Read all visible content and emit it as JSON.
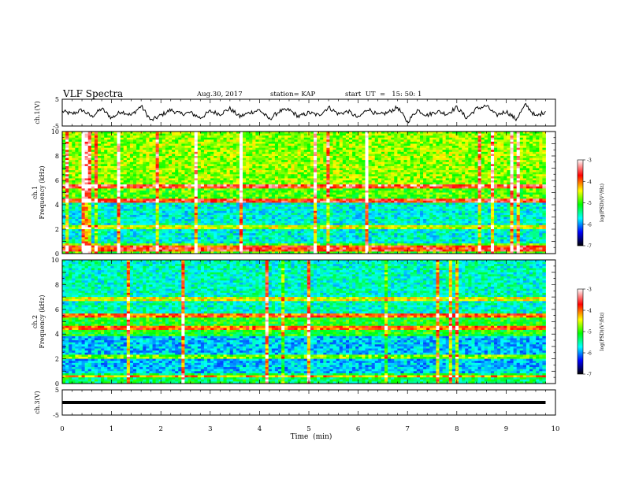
{
  "header": {
    "title": "VLF Spectra",
    "date": "Aug.30, 2017",
    "station": "station= KAP",
    "start": "start  UT  =   15: 50: 1"
  },
  "colorbar": {
    "label": "log(PSD)(V²/Hz)",
    "ticks": [
      "-3",
      "-4",
      "-5",
      "-6",
      "-7"
    ],
    "colors": [
      "#ffffff",
      "#ff0000",
      "#ffff00",
      "#00ff00",
      "#00ffff",
      "#0000ff",
      "#000000"
    ]
  },
  "chart_data": [
    {
      "id": "ch1-waveform",
      "type": "line",
      "ylabel": "ch.1(V)",
      "ylim": [
        -5,
        5
      ],
      "y_ticklabels": [
        "5",
        "-5"
      ],
      "xlim": [
        0,
        10
      ],
      "x": [
        0,
        0.2,
        0.4,
        0.6,
        0.8,
        1.0,
        1.2,
        1.4,
        1.6,
        1.8,
        2.0,
        2.2,
        2.4,
        2.6,
        2.8,
        3.0,
        3.2,
        3.4,
        3.6,
        3.8,
        4.0,
        4.2,
        4.4,
        4.6,
        4.8,
        5.0,
        5.2,
        5.4,
        5.6,
        5.8,
        6.0,
        6.2,
        6.4,
        6.6,
        6.8,
        7.0,
        7.2,
        7.4,
        7.6,
        7.8,
        8.0,
        8.2,
        8.4,
        8.6,
        8.8,
        9.0,
        9.2,
        9.4,
        9.6,
        9.8
      ],
      "y": [
        0.5,
        -0.5,
        1.0,
        -1.5,
        1.5,
        -2.0,
        0.5,
        -1.0,
        2.5,
        -3.0,
        -1.0,
        1.0,
        -0.5,
        0.0,
        -2.0,
        0.5,
        -0.5,
        1.5,
        -1.5,
        0.0,
        1.0,
        -2.5,
        0.5,
        1.0,
        -1.5,
        0.0,
        -1.0,
        2.0,
        -0.5,
        0.5,
        -2.0,
        1.5,
        -1.0,
        0.0,
        2.0,
        -3.5,
        1.0,
        -1.0,
        0.5,
        -0.5,
        2.0,
        -2.0,
        1.5,
        2.5,
        -1.0,
        0.5,
        -2.5,
        3.0,
        -1.5,
        0.5
      ]
    },
    {
      "id": "ch1-spectrogram",
      "type": "heatmap",
      "ylabel": "ch.1\nFrequency (kHz)",
      "ylim": [
        0,
        10
      ],
      "y_ticklabels": [
        "0",
        "2",
        "4",
        "6",
        "8",
        "10"
      ],
      "xlim": [
        0,
        9.8
      ],
      "value_range": [
        -7,
        -3
      ],
      "description_of_structure": "broadband green/yellow noise with blue low-power bands around 1-4 kHz, red narrowband lines near 0.3, 2.2, 4.3, 5.5 kHz and many vertical impulsive sferic streaks"
    },
    {
      "id": "ch2-spectrogram",
      "type": "heatmap",
      "ylabel": "ch.2\nFrequency (kHz)",
      "ylim": [
        0,
        10
      ],
      "y_ticklabels": [
        "0",
        "2",
        "4",
        "6",
        "8",
        "10"
      ],
      "xlim": [
        0,
        9.8
      ],
      "value_range": [
        -7,
        -3
      ],
      "description_of_structure": "mixed blue and green power with strong blue regions 6-10 kHz and below 4 kHz, red narrowband lines near 0.6, 2.2, 4.5, 5.5 kHz and vertical sferic streaks"
    },
    {
      "id": "ch3-waveform",
      "type": "line",
      "ylabel": "ch.3(V)",
      "ylim": [
        -5,
        5
      ],
      "y_ticklabels": [
        "5",
        "-5"
      ],
      "xlim": [
        0,
        10
      ],
      "x": [
        0,
        9.8
      ],
      "y": [
        0,
        0
      ]
    }
  ],
  "xaxis": {
    "label": "Time  (min)",
    "ticks": [
      "0",
      "1",
      "2",
      "3",
      "4",
      "5",
      "6",
      "7",
      "8",
      "9",
      "10"
    ]
  }
}
